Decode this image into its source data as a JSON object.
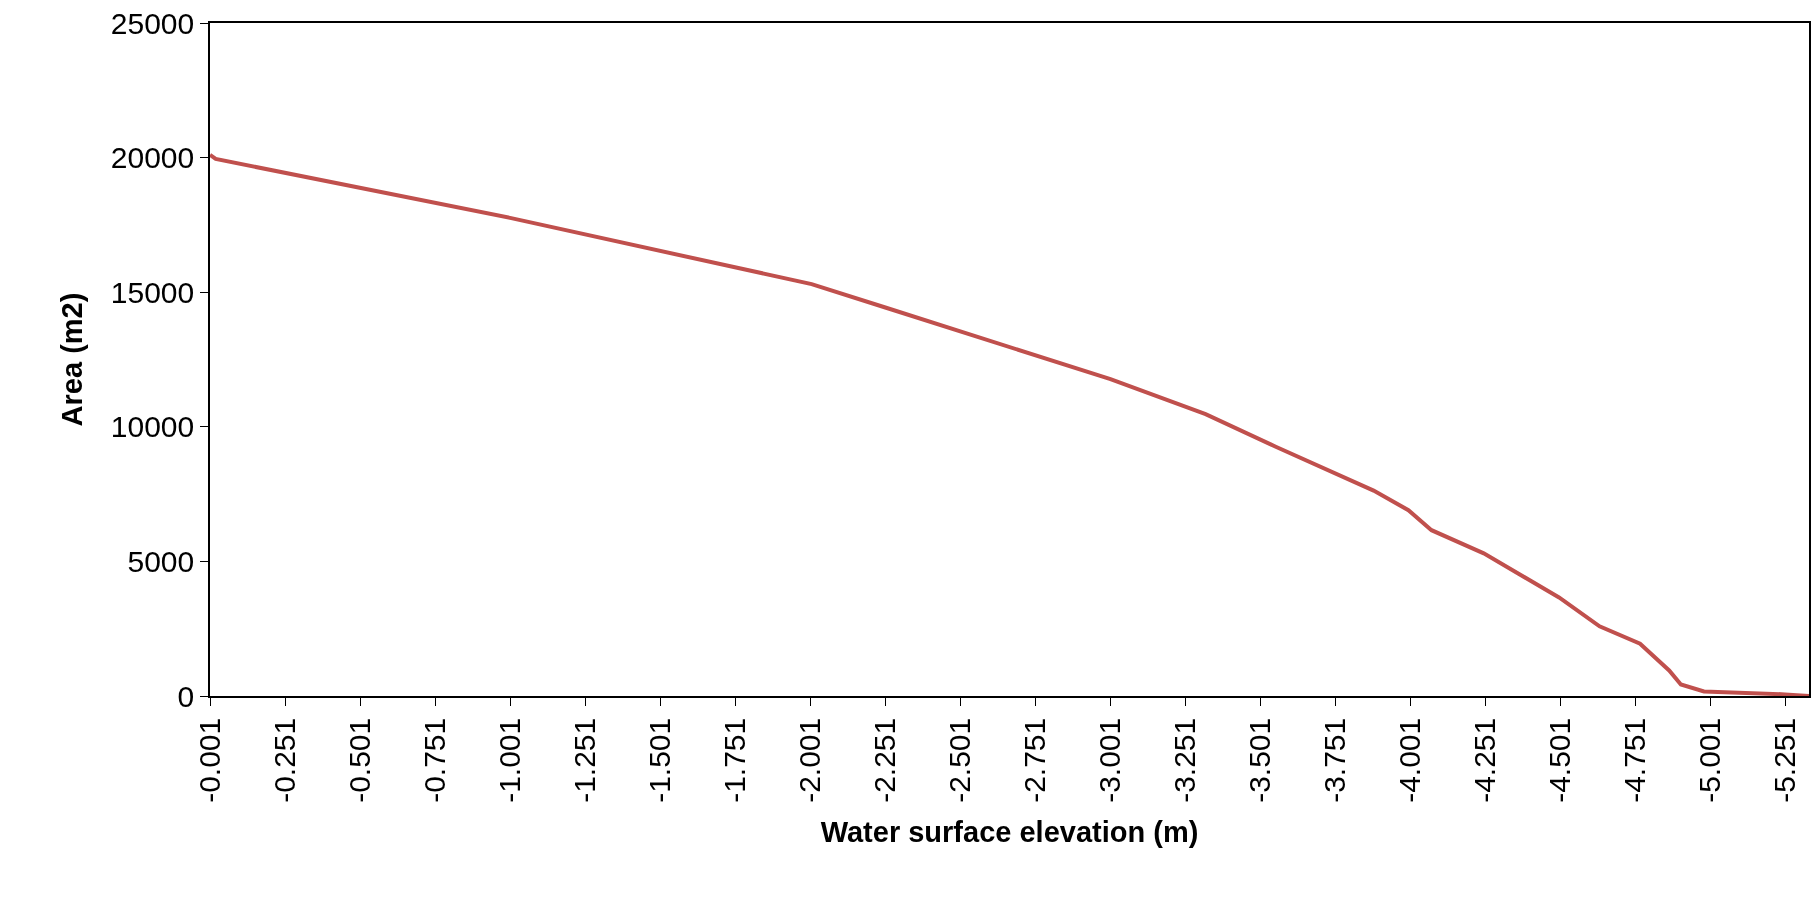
{
  "chart_data": {
    "type": "line",
    "xlabel": "Water surface elevation (m)",
    "ylabel": "Area (m2)",
    "x": [
      -0.001,
      -0.02,
      -1.001,
      -2.006,
      -2.249,
      -3.002,
      -3.319,
      -3.551,
      -3.879,
      -3.995,
      -4.072,
      -4.246,
      -4.497,
      -4.632,
      -4.767,
      -4.864,
      -4.903,
      -4.98,
      -5.25,
      -5.33
    ],
    "series": [
      {
        "color": "#c0504d",
        "values": [
          20100,
          19950,
          17760,
          15300,
          14440,
          11770,
          10470,
          9270,
          7630,
          6900,
          6160,
          5300,
          3660,
          2590,
          1940,
          950,
          430,
          170,
          60,
          0
        ]
      }
    ],
    "xlim": [
      -0.001,
      -5.33
    ],
    "xticks": [
      -0.001,
      -0.251,
      -0.501,
      -0.751,
      -1.001,
      -1.251,
      -1.501,
      -1.751,
      -2.001,
      -2.251,
      -2.501,
      -2.751,
      -3.001,
      -3.251,
      -3.501,
      -3.751,
      -4.001,
      -4.251,
      -4.501,
      -4.751,
      -5.001,
      -5.251
    ],
    "ylim": [
      0,
      25000
    ],
    "yticks": [
      0,
      5000,
      10000,
      15000,
      20000,
      25000
    ],
    "grid": false,
    "marker": "none",
    "line_style": "solid"
  }
}
